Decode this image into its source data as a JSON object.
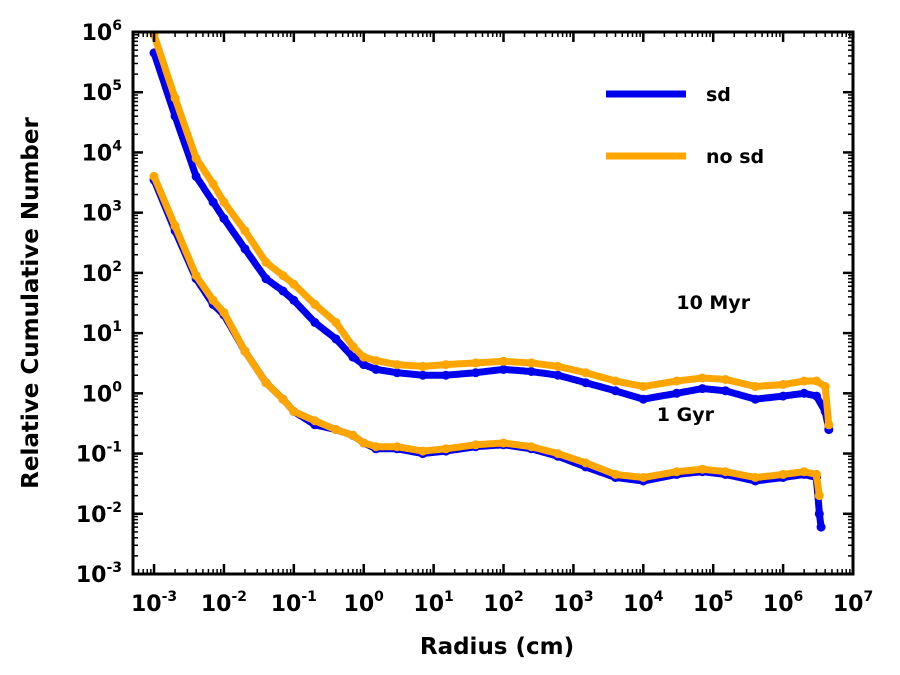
{
  "chart_data": {
    "type": "scatter",
    "title": "",
    "xlabel": "Radius (cm)",
    "ylabel": "Relative Cumulative Number",
    "xscale": "log",
    "yscale": "log",
    "xlim": [
      0.0005,
      10000000
    ],
    "ylim": [
      0.001,
      1000000
    ],
    "x_ticks": [
      {
        "base": "10",
        "exp": "-3",
        "value": 0.001
      },
      {
        "base": "10",
        "exp": "-2",
        "value": 0.01
      },
      {
        "base": "10",
        "exp": "-1",
        "value": 0.1
      },
      {
        "base": "10",
        "exp": "0",
        "value": 1
      },
      {
        "base": "10",
        "exp": "1",
        "value": 10
      },
      {
        "base": "10",
        "exp": "2",
        "value": 100
      },
      {
        "base": "10",
        "exp": "3",
        "value": 1000
      },
      {
        "base": "10",
        "exp": "4",
        "value": 10000
      },
      {
        "base": "10",
        "exp": "5",
        "value": 100000
      },
      {
        "base": "10",
        "exp": "6",
        "value": 1000000
      },
      {
        "base": "10",
        "exp": "7",
        "value": 10000000
      }
    ],
    "y_ticks": [
      {
        "base": "10",
        "exp": "-3",
        "value": 0.001
      },
      {
        "base": "10",
        "exp": "-2",
        "value": 0.01
      },
      {
        "base": "10",
        "exp": "-1",
        "value": 0.1
      },
      {
        "base": "10",
        "exp": "0",
        "value": 1
      },
      {
        "base": "10",
        "exp": "1",
        "value": 10
      },
      {
        "base": "10",
        "exp": "2",
        "value": 100
      },
      {
        "base": "10",
        "exp": "3",
        "value": 1000
      },
      {
        "base": "10",
        "exp": "4",
        "value": 10000
      },
      {
        "base": "10",
        "exp": "5",
        "value": 100000
      },
      {
        "base": "10",
        "exp": "6",
        "value": 1000000
      }
    ],
    "legend": {
      "placement": "top-right",
      "entries": [
        {
          "label": "sd",
          "color": "#0000ee"
        },
        {
          "label": "no sd",
          "color": "#ffa500"
        }
      ]
    },
    "annotations": [
      {
        "text": "10 Myr",
        "x": 100000,
        "y": 25
      },
      {
        "text": "1 Gyr",
        "x": 40000,
        "y": 0.35
      }
    ],
    "series": [
      {
        "name": "sd",
        "group": "10 Myr",
        "color": "#0000ee",
        "x": [
          0.001,
          0.002,
          0.004,
          0.007,
          0.01,
          0.02,
          0.04,
          0.07,
          0.1,
          0.2,
          0.4,
          0.7,
          1,
          1.5,
          3,
          7,
          15,
          40,
          100,
          250,
          600,
          1500,
          4000,
          10000,
          30000,
          70000,
          150000,
          400000,
          1000000,
          2000000,
          3000000,
          4000000,
          4500000
        ],
        "y": [
          450000,
          40000,
          4000,
          1500,
          800,
          250,
          80,
          50,
          35,
          15,
          8,
          4,
          3,
          2.5,
          2.2,
          2.0,
          2.0,
          2.2,
          2.5,
          2.3,
          2.0,
          1.5,
          1.1,
          0.8,
          1.0,
          1.2,
          1.1,
          0.8,
          0.9,
          1.0,
          0.9,
          0.5,
          0.25
        ]
      },
      {
        "name": "no sd",
        "group": "10 Myr",
        "color": "#ffa500",
        "x": [
          0.001,
          0.002,
          0.004,
          0.007,
          0.01,
          0.02,
          0.04,
          0.07,
          0.1,
          0.2,
          0.4,
          0.7,
          1,
          1.5,
          3,
          7,
          15,
          40,
          100,
          250,
          600,
          1500,
          4000,
          10000,
          30000,
          70000,
          150000,
          400000,
          1000000,
          2000000,
          3000000,
          4000000,
          4500000
        ],
        "y": [
          900000,
          80000,
          8000,
          3000,
          1500,
          500,
          150,
          90,
          65,
          30,
          15,
          6,
          4,
          3.5,
          3.0,
          2.8,
          3.0,
          3.2,
          3.4,
          3.2,
          2.8,
          2.2,
          1.6,
          1.3,
          1.6,
          1.8,
          1.7,
          1.3,
          1.4,
          1.6,
          1.6,
          1.3,
          0.3
        ]
      },
      {
        "name": "sd",
        "group": "1 Gyr",
        "color": "#0000ee",
        "x": [
          0.001,
          0.002,
          0.004,
          0.007,
          0.01,
          0.02,
          0.04,
          0.07,
          0.1,
          0.2,
          0.4,
          0.7,
          1,
          1.5,
          3,
          7,
          15,
          40,
          100,
          250,
          600,
          1500,
          4000,
          10000,
          30000,
          70000,
          150000,
          400000,
          1000000,
          2000000,
          3000000,
          3300000,
          3500000
        ],
        "y": [
          3500,
          500,
          80,
          30,
          20,
          5,
          1.5,
          0.8,
          0.5,
          0.3,
          0.25,
          0.2,
          0.15,
          0.12,
          0.12,
          0.1,
          0.11,
          0.13,
          0.14,
          0.12,
          0.09,
          0.06,
          0.04,
          0.035,
          0.045,
          0.05,
          0.045,
          0.035,
          0.04,
          0.045,
          0.04,
          0.01,
          0.006
        ]
      },
      {
        "name": "no sd",
        "group": "1 Gyr",
        "color": "#ffa500",
        "x": [
          0.001,
          0.002,
          0.004,
          0.007,
          0.01,
          0.02,
          0.04,
          0.07,
          0.1,
          0.2,
          0.4,
          0.7,
          1,
          1.5,
          3,
          7,
          15,
          40,
          100,
          250,
          600,
          1500,
          4000,
          10000,
          30000,
          70000,
          150000,
          400000,
          1000000,
          2000000,
          3000000,
          3300000
        ],
        "y": [
          4000,
          600,
          90,
          35,
          22,
          5,
          1.5,
          0.8,
          0.5,
          0.35,
          0.25,
          0.2,
          0.15,
          0.13,
          0.13,
          0.11,
          0.12,
          0.14,
          0.15,
          0.13,
          0.1,
          0.07,
          0.045,
          0.04,
          0.05,
          0.055,
          0.05,
          0.04,
          0.045,
          0.05,
          0.045,
          0.02
        ]
      }
    ]
  }
}
